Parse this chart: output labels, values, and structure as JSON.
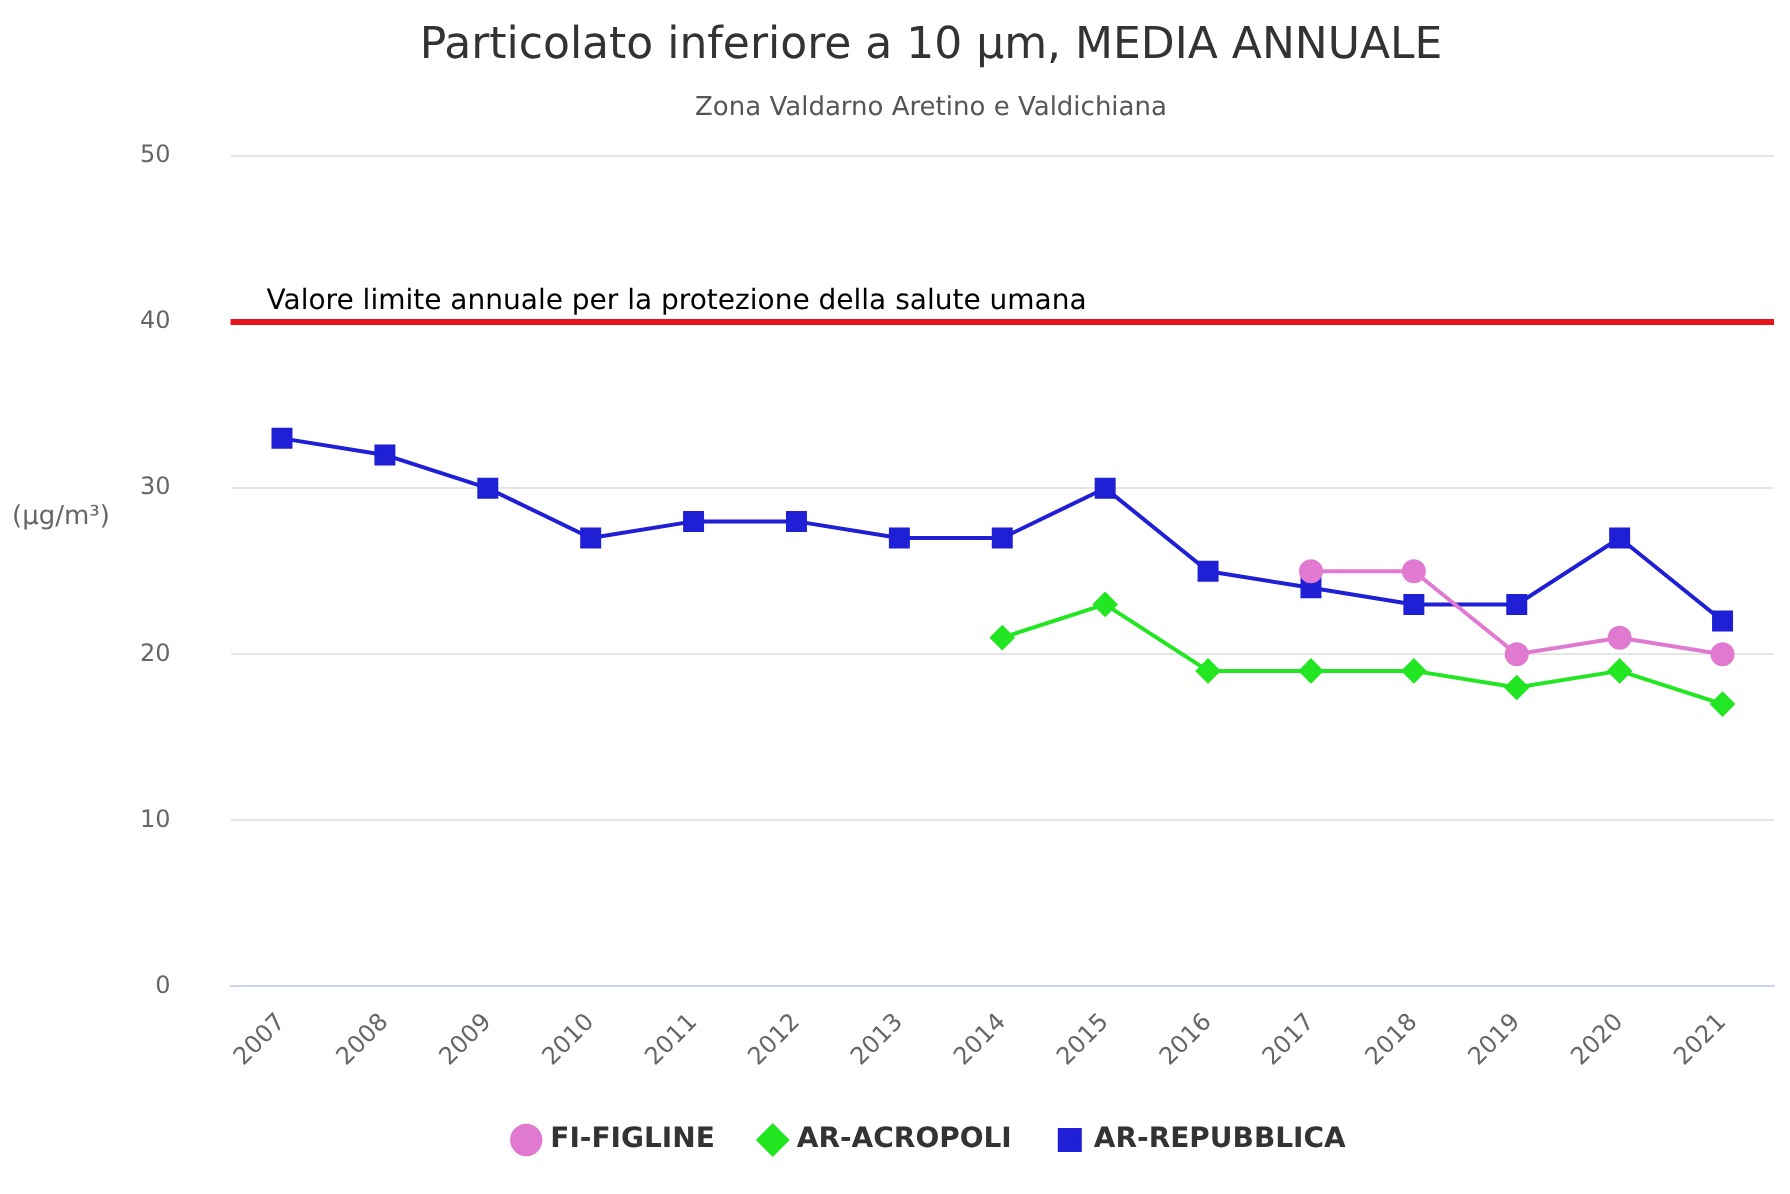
{
  "chart_data": {
    "type": "line",
    "title": "Particolato inferiore a 10 µm, MEDIA ANNUALE",
    "subtitle": "Zona Valdarno Aretino e Valdichiana",
    "ylabel": "(µg/m³)",
    "categories": [
      "2007",
      "2008",
      "2009",
      "2010",
      "2011",
      "2012",
      "2013",
      "2014",
      "2015",
      "2016",
      "2017",
      "2018",
      "2019",
      "2020",
      "2021"
    ],
    "series": [
      {
        "name": "FI-FIGLINE",
        "color": "#e07ad0",
        "marker": "circle",
        "values": [
          null,
          null,
          null,
          null,
          null,
          null,
          null,
          null,
          null,
          null,
          25,
          25,
          20,
          21,
          20
        ]
      },
      {
        "name": "AR-ACROPOLI",
        "color": "#22e622",
        "marker": "diamond",
        "values": [
          null,
          null,
          null,
          null,
          null,
          null,
          null,
          21,
          23,
          19,
          19,
          19,
          18,
          19,
          17
        ]
      },
      {
        "name": "AR-REPUBBLICA",
        "color": "#1f1fd6",
        "marker": "square",
        "values": [
          33,
          32,
          30,
          27,
          28,
          28,
          27,
          27,
          30,
          25,
          24,
          23,
          23,
          27,
          22
        ]
      }
    ],
    "ylim": [
      0,
      50
    ],
    "yticks": [
      0,
      10,
      20,
      30,
      40,
      50
    ],
    "grid": "y",
    "legend": "bottom",
    "ref_lines": [
      {
        "axis": "y",
        "value": 40,
        "label": "Valore limite annuale per la protezione della salute umana",
        "color": "#e8141c"
      }
    ]
  }
}
